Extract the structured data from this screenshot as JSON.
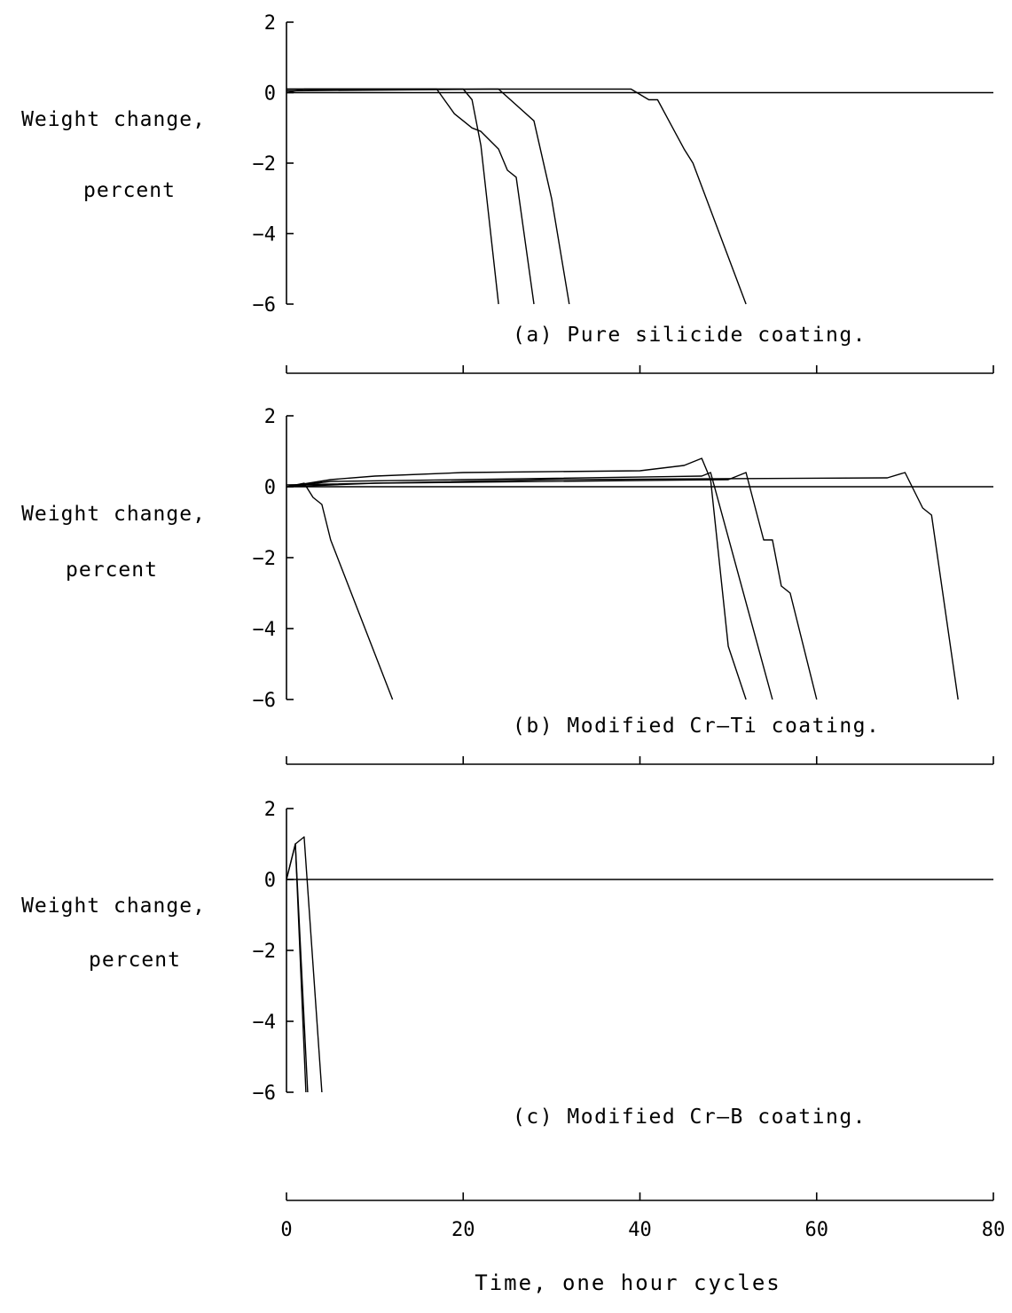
{
  "chart_data": [
    {
      "type": "line",
      "caption": "(a) Pure silicide coating.",
      "ylabel": [
        "Weight change,",
        "percent"
      ],
      "xlabel": "",
      "ylim": [
        -6,
        2
      ],
      "yticks": [
        "2",
        "0",
        "−6"
      ],
      "yticks_all": [
        {
          "v": 2,
          "label": "2"
        },
        {
          "v": 0,
          "label": "0"
        },
        {
          "v": -2,
          "label": "−2"
        },
        {
          "v": -4,
          "label": "−4"
        },
        {
          "v": -6,
          "label": "−6"
        }
      ],
      "xlim": [
        0,
        80
      ],
      "xticks": [
        0,
        20,
        40,
        60,
        80
      ],
      "series": [
        {
          "values": [
            [
              0,
              0
            ],
            [
              2,
              0.1
            ],
            [
              10,
              0.1
            ],
            [
              17,
              0.1
            ],
            [
              19,
              -0.6
            ],
            [
              20,
              -0.8
            ],
            [
              21,
              -1
            ],
            [
              22,
              -1.1
            ],
            [
              24,
              -1.6
            ],
            [
              25,
              -2.2
            ],
            [
              26,
              -2.4
            ],
            [
              28,
              -6
            ]
          ]
        },
        {
          "values": [
            [
              0,
              0.1
            ],
            [
              20,
              0.1
            ],
            [
              21,
              -0.2
            ],
            [
              22,
              -1.5
            ],
            [
              24,
              -6
            ]
          ]
        },
        {
          "values": [
            [
              0,
              0.05
            ],
            [
              23,
              0.1
            ],
            [
              24,
              0.1
            ],
            [
              28,
              -0.8
            ],
            [
              30,
              -3
            ],
            [
              32,
              -6
            ]
          ]
        },
        {
          "values": [
            [
              0,
              0.1
            ],
            [
              39,
              0.1
            ],
            [
              41,
              -0.2
            ],
            [
              42,
              -0.2
            ],
            [
              45,
              -1.6
            ],
            [
              46,
              -2
            ],
            [
              52,
              -6
            ]
          ]
        },
        {
          "values": [
            [
              0,
              0
            ],
            [
              80,
              0
            ]
          ]
        }
      ]
    },
    {
      "type": "line",
      "caption": "(b) Modified Cr—Ti coating.",
      "ylabel": [
        "Weight change,",
        "percent"
      ],
      "xlabel": "",
      "ylim": [
        -6,
        2
      ],
      "yticks_all": [
        {
          "v": 2,
          "label": "2"
        },
        {
          "v": 0,
          "label": "0"
        },
        {
          "v": -2,
          "label": "−2"
        },
        {
          "v": -4,
          "label": "−4"
        },
        {
          "v": -6,
          "label": "−6"
        }
      ],
      "xlim": [
        0,
        80
      ],
      "xticks": [
        0,
        20,
        40,
        60,
        80
      ],
      "series": [
        {
          "values": [
            [
              0,
              0
            ],
            [
              2,
              0.1
            ],
            [
              3,
              -0.3
            ],
            [
              4,
              -0.5
            ],
            [
              5,
              -1.5
            ],
            [
              12,
              -6
            ]
          ]
        },
        {
          "values": [
            [
              0,
              0
            ],
            [
              5,
              0.2
            ],
            [
              10,
              0.3
            ],
            [
              20,
              0.4
            ],
            [
              40,
              0.45
            ],
            [
              45,
              0.6
            ],
            [
              47,
              0.8
            ],
            [
              48,
              0.2
            ],
            [
              50,
              -4.5
            ],
            [
              52,
              -6
            ]
          ]
        },
        {
          "values": [
            [
              0,
              0
            ],
            [
              5,
              0.15
            ],
            [
              20,
              0.2
            ],
            [
              47,
              0.3
            ],
            [
              48,
              0.4
            ],
            [
              55,
              -6
            ]
          ]
        },
        {
          "values": [
            [
              0,
              0
            ],
            [
              10,
              0.1
            ],
            [
              50,
              0.2
            ],
            [
              52,
              0.4
            ],
            [
              54,
              -1.5
            ],
            [
              55,
              -1.5
            ],
            [
              56,
              -2.8
            ],
            [
              57,
              -3
            ],
            [
              60,
              -6
            ]
          ]
        },
        {
          "values": [
            [
              0,
              0.05
            ],
            [
              30,
              0.2
            ],
            [
              68,
              0.25
            ],
            [
              70,
              0.4
            ],
            [
              72,
              -0.6
            ],
            [
              73,
              -0.8
            ],
            [
              76,
              -6
            ]
          ]
        },
        {
          "values": [
            [
              0,
              0
            ],
            [
              80,
              0
            ]
          ]
        }
      ]
    },
    {
      "type": "line",
      "caption": "(c) Modified Cr—B coating.",
      "ylabel": [
        "Weight change,",
        "percent"
      ],
      "xlabel": "Time, one hour cycles",
      "ylim": [
        -6,
        2
      ],
      "yticks_all": [
        {
          "v": 2,
          "label": "2"
        },
        {
          "v": 0,
          "label": "0"
        },
        {
          "v": -2,
          "label": "−2"
        },
        {
          "v": -4,
          "label": "−4"
        },
        {
          "v": -6,
          "label": "−6"
        }
      ],
      "xlim": [
        0,
        80
      ],
      "xticks": [
        0,
        20,
        40,
        60,
        80
      ],
      "xtick_labels": [
        "0",
        "20",
        "40",
        "60",
        "80"
      ],
      "series": [
        {
          "values": [
            [
              0,
              0
            ],
            [
              1,
              1
            ],
            [
              2.2,
              -6
            ]
          ]
        },
        {
          "values": [
            [
              0,
              0
            ],
            [
              1,
              1
            ],
            [
              2.4,
              -6
            ]
          ]
        },
        {
          "values": [
            [
              1,
              1
            ],
            [
              2,
              1.2
            ],
            [
              4,
              -6
            ]
          ]
        },
        {
          "values": [
            [
              0,
              0
            ],
            [
              80,
              0
            ]
          ]
        }
      ]
    }
  ]
}
